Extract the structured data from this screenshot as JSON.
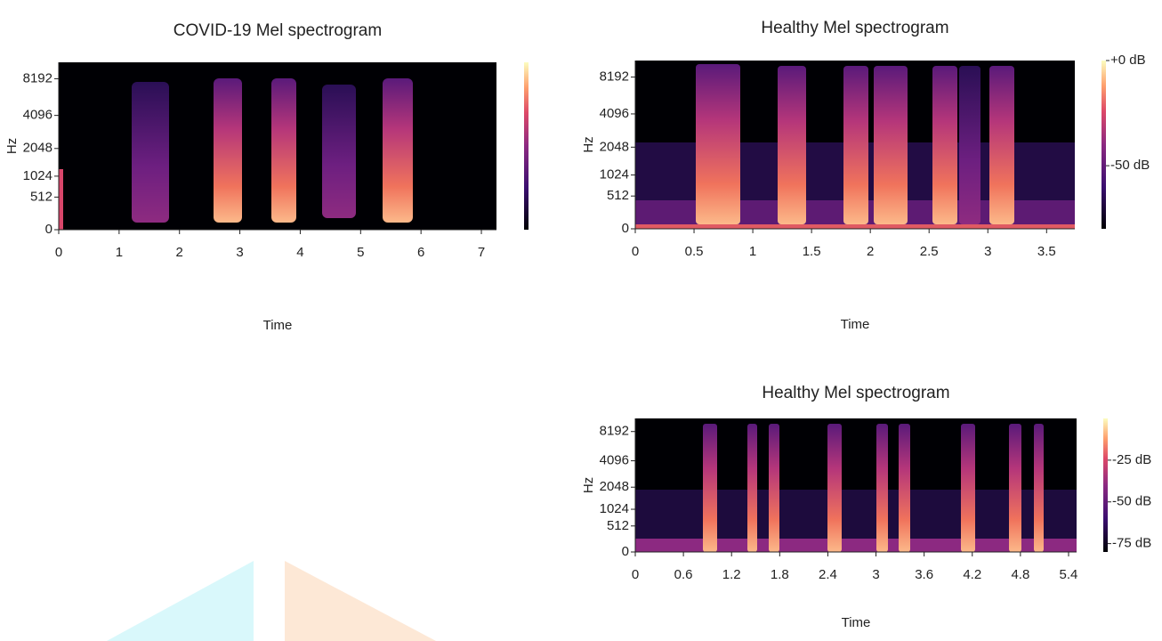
{
  "chart_data": [
    {
      "type": "spectrogram",
      "title": "COVID-19 Mel spectrogram",
      "xlabel": "Time",
      "ylabel": "Hz",
      "xlim": [
        0,
        7.25
      ],
      "xticks": [
        0,
        1,
        2,
        3,
        4,
        5,
        6,
        7
      ],
      "yscale": "mel",
      "ylim": [
        0,
        11025
      ],
      "yticks": [
        0,
        512,
        1024,
        2048,
        4096,
        8192
      ],
      "colormap": "magma",
      "clim": [
        -80,
        0
      ]
    },
    {
      "type": "spectrogram",
      "title": "Healthy Mel spectrogram",
      "xlabel": "Time",
      "ylabel": "Hz",
      "xlim": [
        0,
        3.74
      ],
      "xticks": [
        0,
        0.5,
        1,
        1.5,
        2,
        2.5,
        3,
        3.5
      ],
      "yscale": "mel",
      "ylim": [
        0,
        11025
      ],
      "yticks": [
        0,
        512,
        1024,
        2048,
        4096,
        8192
      ],
      "colormap": "magma",
      "clim": [
        -80,
        0
      ],
      "cticks": [
        {
          "value": 0,
          "label": "+0 dB"
        },
        {
          "value": -50,
          "label": "-50 dB"
        }
      ]
    },
    {
      "type": "spectrogram",
      "title": "Healthy Mel spectrogram",
      "xlabel": "Time",
      "ylabel": "Hz",
      "xlim": [
        0,
        5.5
      ],
      "xticks": [
        0,
        0.6,
        1.2,
        1.8,
        2.4,
        3,
        3.6,
        4.2,
        4.8,
        5.4
      ],
      "yscale": "mel",
      "ylim": [
        0,
        11025
      ],
      "yticks": [
        0,
        512,
        1024,
        2048,
        4096,
        8192
      ],
      "colormap": "magma",
      "clim": [
        -80,
        0
      ],
      "cticks": [
        {
          "value": -25,
          "label": "-25 dB"
        },
        {
          "value": -50,
          "label": "-50 dB"
        },
        {
          "value": -75,
          "label": "-75 dB"
        }
      ]
    }
  ]
}
